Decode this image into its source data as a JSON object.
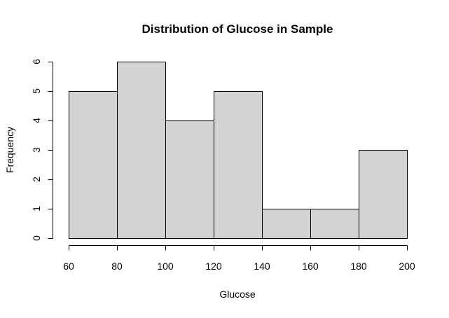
{
  "chart_data": {
    "type": "bar",
    "title": "Distribution of Glucose in Sample",
    "xlabel": "Glucose",
    "ylabel": "Frequency",
    "bins": [
      {
        "from": 60,
        "to": 80,
        "count": 5
      },
      {
        "from": 80,
        "to": 100,
        "count": 6
      },
      {
        "from": 100,
        "to": 120,
        "count": 4
      },
      {
        "from": 120,
        "to": 140,
        "count": 5
      },
      {
        "from": 140,
        "to": 160,
        "count": 1
      },
      {
        "from": 160,
        "to": 180,
        "count": 1
      },
      {
        "from": 180,
        "to": 200,
        "count": 3
      }
    ],
    "xlim": [
      60,
      200
    ],
    "ylim": [
      0,
      6
    ],
    "x_ticks": [
      "60",
      "80",
      "100",
      "120",
      "140",
      "160",
      "180",
      "200"
    ],
    "y_ticks": [
      "0",
      "1",
      "2",
      "3",
      "4",
      "5",
      "6"
    ],
    "bar_color": "#d3d3d3",
    "border_color": "#000000",
    "grid": false
  }
}
